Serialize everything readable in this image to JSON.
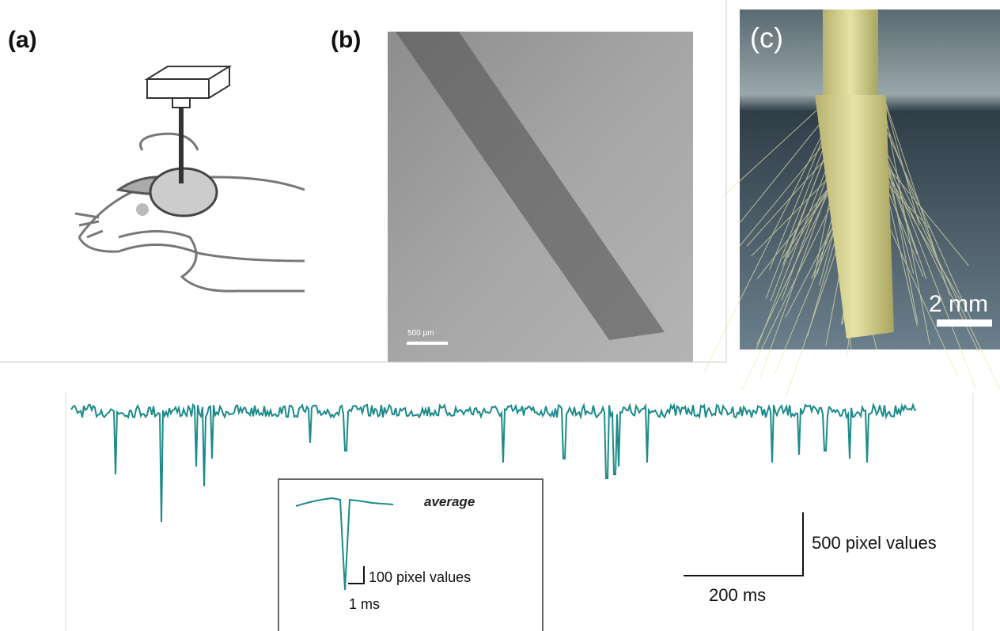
{
  "panels": {
    "a": {
      "label": "(a)"
    },
    "b": {
      "label": "(b)",
      "scale_bar": "500 µm"
    },
    "c": {
      "label": "(c)",
      "scale_bar": "2 mm"
    },
    "d": {
      "inset_label": "average",
      "inset_scale_y": "100 pixel values",
      "inset_scale_x": "1 ms",
      "scale_y": "500 pixel values",
      "scale_x": "200 ms"
    }
  }
}
